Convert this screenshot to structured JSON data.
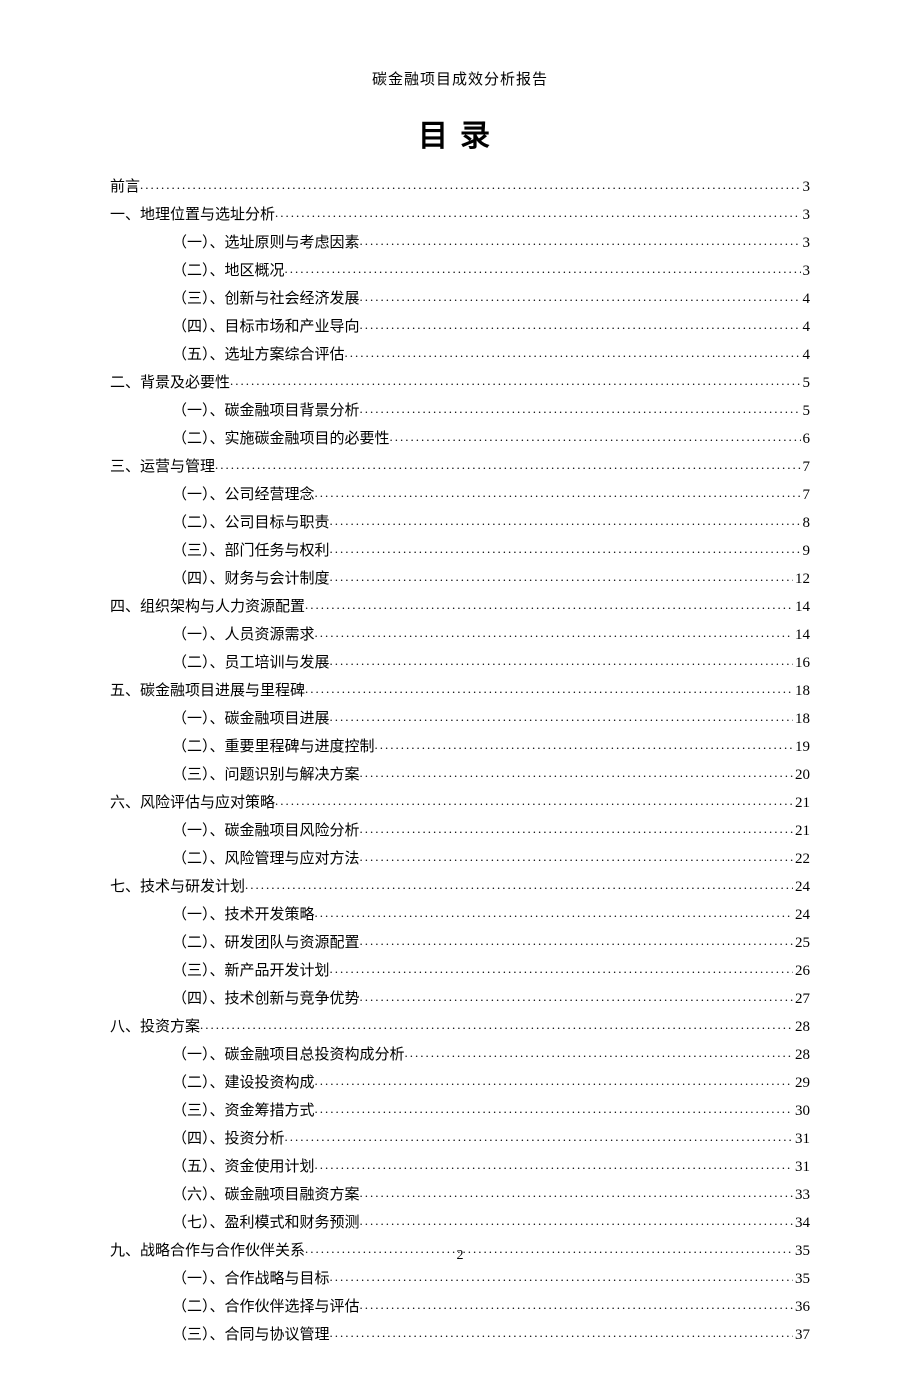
{
  "header": "碳金融项目成效分析报告",
  "toc_title": "目录",
  "page_number": "2",
  "entries": [
    {
      "level": 0,
      "label": "前言",
      "page": "3"
    },
    {
      "level": 0,
      "label": "一、地理位置与选址分析",
      "page": "3"
    },
    {
      "level": 1,
      "label": "（一）、选址原则与考虑因素",
      "page": "3"
    },
    {
      "level": 1,
      "label": "（二）、地区概况",
      "page": "3"
    },
    {
      "level": 1,
      "label": "（三）、创新与社会经济发展",
      "page": "4"
    },
    {
      "level": 1,
      "label": "（四）、目标市场和产业导向",
      "page": "4"
    },
    {
      "level": 1,
      "label": "（五）、选址方案综合评估",
      "page": "4"
    },
    {
      "level": 0,
      "label": "二、背景及必要性 ",
      "page": "5"
    },
    {
      "level": 1,
      "label": "（一）、碳金融项目背景分析",
      "page": "5"
    },
    {
      "level": 1,
      "label": "（二）、实施碳金融项目的必要性",
      "page": "6"
    },
    {
      "level": 0,
      "label": "三、运营与管理 ",
      "page": "7"
    },
    {
      "level": 1,
      "label": "（一）、公司经营理念",
      "page": "7"
    },
    {
      "level": 1,
      "label": "（二）、公司目标与职责",
      "page": "8"
    },
    {
      "level": 1,
      "label": "（三）、部门任务与权利",
      "page": "9"
    },
    {
      "level": 1,
      "label": "（四）、财务与会计制度",
      "page": "12"
    },
    {
      "level": 0,
      "label": "四、组织架构与人力资源配置",
      "page": "14"
    },
    {
      "level": 1,
      "label": "（一）、人员资源需求",
      "page": "14"
    },
    {
      "level": 1,
      "label": "（二）、员工培训与发展",
      "page": "16"
    },
    {
      "level": 0,
      "label": "五、碳金融项目进展与里程碑",
      "page": "18"
    },
    {
      "level": 1,
      "label": "（一）、碳金融项目进展",
      "page": "18"
    },
    {
      "level": 1,
      "label": "（二）、重要里程碑与进度控制",
      "page": "19"
    },
    {
      "level": 1,
      "label": "（三）、问题识别与解决方案",
      "page": "20"
    },
    {
      "level": 0,
      "label": "六、风险评估与应对策略",
      "page": "21"
    },
    {
      "level": 1,
      "label": "（一）、碳金融项目风险分析",
      "page": "21"
    },
    {
      "level": 1,
      "label": "（二）、风险管理与应对方法",
      "page": "22"
    },
    {
      "level": 0,
      "label": "七、技术与研发计划 ",
      "page": "24"
    },
    {
      "level": 1,
      "label": "（一）、技术开发策略",
      "page": "24"
    },
    {
      "level": 1,
      "label": "（二）、研发团队与资源配置",
      "page": "25"
    },
    {
      "level": 1,
      "label": "（三）、新产品开发计划",
      "page": "26"
    },
    {
      "level": 1,
      "label": "（四）、技术创新与竞争优势",
      "page": "27"
    },
    {
      "level": 0,
      "label": "八、投资方案 ",
      "page": "28"
    },
    {
      "level": 1,
      "label": "（一）、碳金融项目总投资构成分析",
      "page": "28"
    },
    {
      "level": 1,
      "label": "（二）、建设投资构成",
      "page": "29"
    },
    {
      "level": 1,
      "label": "（三）、资金筹措方式",
      "page": "30"
    },
    {
      "level": 1,
      "label": "（四）、投资分析 ",
      "page": "31"
    },
    {
      "level": 1,
      "label": "（五）、资金使用计划",
      "page": "31"
    },
    {
      "level": 1,
      "label": "（六）、碳金融项目融资方案",
      "page": "33"
    },
    {
      "level": 1,
      "label": "（七）、盈利模式和财务预测",
      "page": "34"
    },
    {
      "level": 0,
      "label": "九、战略合作与合作伙伴关系",
      "page": "35"
    },
    {
      "level": 1,
      "label": "（一）、合作战略与目标",
      "page": "35"
    },
    {
      "level": 1,
      "label": "（二）、合作伙伴选择与评估",
      "page": "36"
    },
    {
      "level": 1,
      "label": "（三）、合同与协议管理",
      "page": "37"
    }
  ]
}
